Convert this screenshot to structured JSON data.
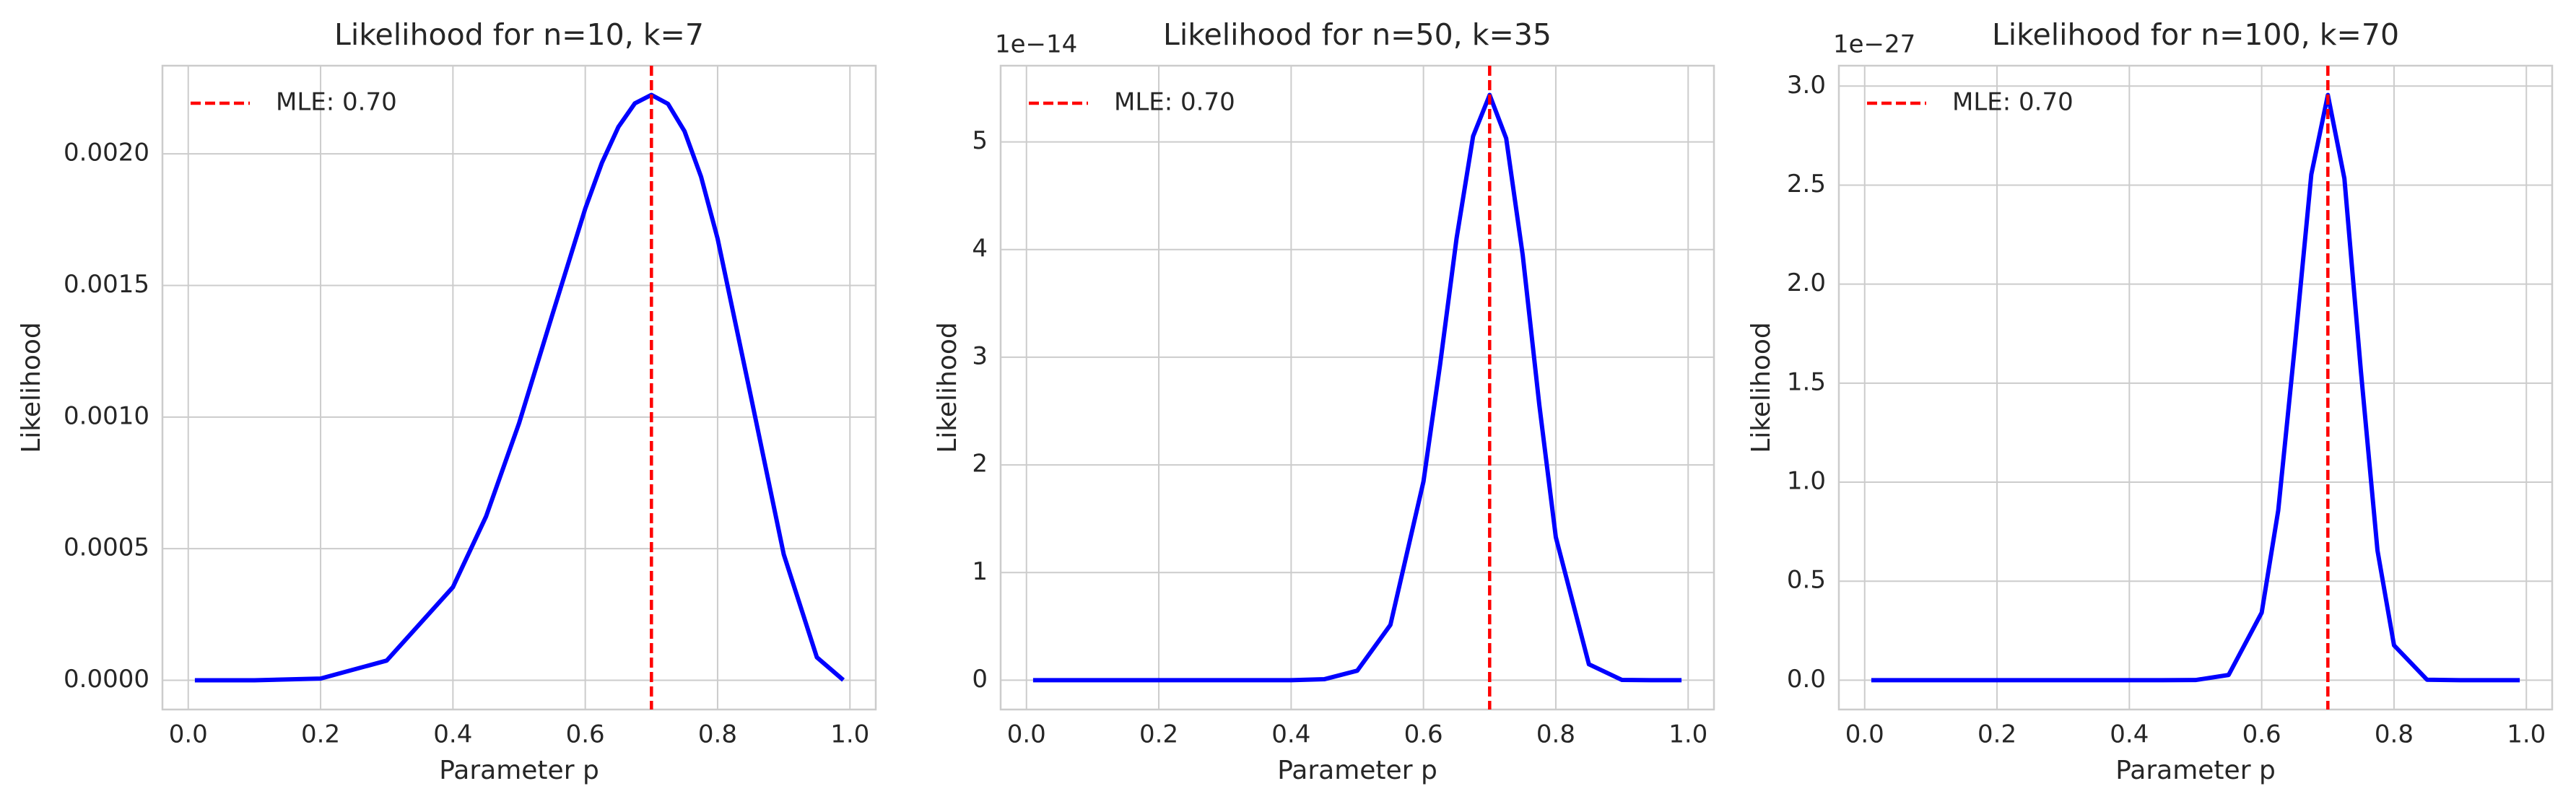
{
  "chart_data": [
    {
      "type": "line",
      "title": "Likelihood for n=10, k=7",
      "x_label": "Parameter p",
      "y_label": "Likelihood",
      "x": [
        0.01,
        0.1,
        0.2,
        0.3,
        0.4,
        0.45,
        0.5,
        0.55,
        0.6,
        0.625,
        0.65,
        0.675,
        0.7,
        0.725,
        0.75,
        0.775,
        0.8,
        0.85,
        0.9,
        0.95,
        0.99
      ],
      "series": [
        {
          "color": "#0000ff",
          "values": [
            0.0,
            7e-08,
            6.6e-06,
            7.5e-05,
            0.000354,
            0.000622,
            0.000977,
            0.001387,
            0.001792,
            0.001965,
            0.002102,
            0.002192,
            0.002224,
            0.00219,
            0.002086,
            0.001913,
            0.001678,
            0.001082,
            0.000478,
            8.73e-05,
            9e-07
          ]
        }
      ],
      "vline": {
        "name": "MLE: 0.70",
        "value": 0.7,
        "color": "#ff0000"
      },
      "xlim": [
        -0.039,
        1.039
      ],
      "ylim": [
        -0.000111,
        0.002335
      ],
      "xticks": [
        {
          "value": 0,
          "label": "0.0"
        },
        0.2,
        0.4,
        0.6,
        0.8,
        {
          "value": 1,
          "label": "1.0"
        }
      ],
      "yticks": [
        {
          "value": 0,
          "label": "0.0000"
        },
        {
          "value": 0.0005,
          "label": "0.0005"
        },
        {
          "value": 0.001,
          "label": "0.0010"
        },
        {
          "value": 0.0015,
          "label": "0.0015"
        },
        {
          "value": 0.002,
          "label": "0.0020"
        }
      ],
      "grid": true,
      "legend": "upper left"
    },
    {
      "type": "line",
      "title": "Likelihood for n=50, k=35",
      "x_label": "Parameter p",
      "y_label": "Likelihood",
      "y_offset_label": "1e−14",
      "x": [
        0.01,
        0.1,
        0.2,
        0.3,
        0.4,
        0.45,
        0.5,
        0.55,
        0.6,
        0.625,
        0.65,
        0.675,
        0.7,
        0.725,
        0.75,
        0.775,
        0.8,
        0.85,
        0.9,
        0.95,
        0.99
      ],
      "series": [
        {
          "color": "#0000ff",
          "values": [
            0,
            0,
            0,
            0,
            0.00055,
            0.0093,
            0.0888,
            0.514,
            1.846,
            2.927,
            4.104,
            5.053,
            5.436,
            5.033,
            3.948,
            2.56,
            1.329,
            0.148,
            0.0025,
            0,
            0
          ]
        }
      ],
      "vline": {
        "name": "MLE: 0.70",
        "value": 0.7,
        "color": "#ff0000"
      },
      "xlim": [
        -0.039,
        1.039
      ],
      "ylim": [
        -0.272,
        5.708
      ],
      "xticks": [
        {
          "value": 0,
          "label": "0.0"
        },
        0.2,
        0.4,
        0.6,
        0.8,
        {
          "value": 1,
          "label": "1.0"
        }
      ],
      "yticks": [
        0,
        1,
        2,
        3,
        4,
        5
      ],
      "grid": true,
      "legend": "upper left"
    },
    {
      "type": "line",
      "title": "Likelihood for n=100, k=70",
      "x_label": "Parameter p",
      "y_label": "Likelihood",
      "y_offset_label": "1e−27",
      "x": [
        0.01,
        0.1,
        0.2,
        0.3,
        0.4,
        0.45,
        0.5,
        0.55,
        0.6,
        0.625,
        0.65,
        0.675,
        0.7,
        0.725,
        0.75,
        0.775,
        0.8,
        0.85,
        0.9,
        0.95,
        0.99
      ],
      "series": [
        {
          "color": "#0000ff",
          "values": [
            0,
            0,
            0,
            0,
            0,
            0,
            0.0008,
            0.0264,
            0.341,
            0.857,
            1.685,
            2.554,
            2.955,
            2.533,
            1.558,
            0.655,
            0.176,
            0.0022,
            0,
            0,
            0
          ]
        }
      ],
      "vline": {
        "name": "MLE: 0.70",
        "value": 0.7,
        "color": "#ff0000"
      },
      "xlim": [
        -0.039,
        1.039
      ],
      "ylim": [
        -0.148,
        3.103
      ],
      "xticks": [
        {
          "value": 0,
          "label": "0.0"
        },
        0.2,
        0.4,
        0.6,
        0.8,
        {
          "value": 1,
          "label": "1.0"
        }
      ],
      "yticks": [
        {
          "value": 0,
          "label": "0.0"
        },
        0.5,
        {
          "value": 1,
          "label": "1.0"
        },
        1.5,
        {
          "value": 2,
          "label": "2.0"
        },
        2.5,
        {
          "value": 3,
          "label": "3.0"
        }
      ],
      "grid": true,
      "legend": "upper left"
    }
  ]
}
